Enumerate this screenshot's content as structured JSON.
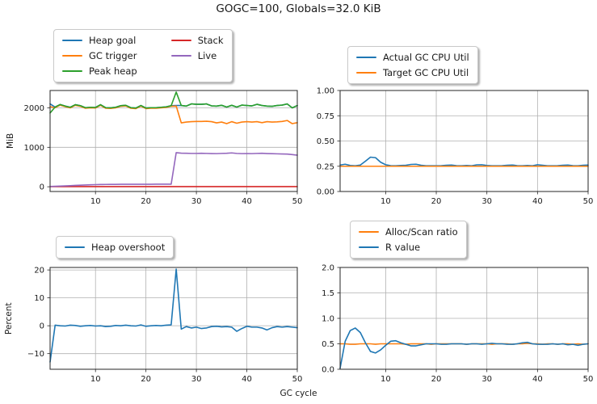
{
  "title": "GOGC=100, Globals=32.0 KiB",
  "xlabel": "GC cycle",
  "style": {
    "background": "#ffffff",
    "grid_color": "#b0b0b0",
    "spine_color": "#262626",
    "text_color": "#1a1a1a",
    "blue": "#1f77b4",
    "orange": "#ff7f0e",
    "green": "#2ca02c",
    "red": "#d62728",
    "purple": "#9467bd"
  },
  "chart_data": [
    {
      "id": "heap-sizes",
      "type": "line",
      "ylabel": "MiB",
      "x_start": 1,
      "xlim": [
        1,
        50
      ],
      "ylim": [
        -120,
        2440
      ],
      "xticks": [
        10,
        20,
        30,
        40,
        50
      ],
      "xticklabels": [
        "10",
        "20",
        "30",
        "40",
        "50"
      ],
      "yticks": [
        0,
        1000,
        2000
      ],
      "yticklabels": [
        "0",
        "1000",
        "2000"
      ],
      "grid": true,
      "legend_position": "above-left",
      "legend_columns": 2,
      "series": [
        {
          "name": "Heap goal",
          "color": "#1f77b4",
          "values": [
            2100,
            2020,
            2085,
            2045,
            2015,
            2080,
            2055,
            2005,
            2015,
            2010,
            2080,
            2005,
            2000,
            2015,
            2055,
            2065,
            2005,
            1995,
            2060,
            1995,
            2005,
            2005,
            2015,
            2025,
            2055,
            2060,
            2060,
            2045,
            2100,
            2090,
            2090,
            2100,
            2050,
            2045,
            2065,
            2020,
            2065,
            2020,
            2070,
            2060,
            2050,
            2090,
            2060,
            2045,
            2040,
            2060,
            2070,
            2100,
            2000,
            2060
          ]
        },
        {
          "name": "GC trigger",
          "color": "#ff7f0e",
          "values": [
            2030,
            2005,
            2070,
            2030,
            2000,
            2065,
            2040,
            1990,
            2000,
            1995,
            2065,
            1990,
            1985,
            2000,
            2040,
            2050,
            1990,
            1980,
            2045,
            1980,
            1990,
            1990,
            2000,
            2010,
            2040,
            2045,
            1620,
            1640,
            1650,
            1655,
            1655,
            1660,
            1650,
            1620,
            1640,
            1600,
            1650,
            1610,
            1640,
            1650,
            1640,
            1650,
            1625,
            1650,
            1640,
            1645,
            1655,
            1680,
            1600,
            1625
          ]
        },
        {
          "name": "Peak heap",
          "color": "#2ca02c",
          "values": [
            1870,
            2020,
            2085,
            2045,
            2015,
            2080,
            2055,
            2005,
            2015,
            2010,
            2080,
            2005,
            2000,
            2015,
            2055,
            2065,
            2005,
            1995,
            2060,
            1995,
            2005,
            2005,
            2015,
            2025,
            2055,
            2400,
            2060,
            2045,
            2100,
            2090,
            2090,
            2100,
            2050,
            2045,
            2065,
            2020,
            2065,
            2020,
            2070,
            2060,
            2050,
            2090,
            2060,
            2045,
            2040,
            2060,
            2070,
            2100,
            2000,
            2060
          ]
        },
        {
          "name": "Stack",
          "color": "#d62728",
          "values": [
            4,
            4,
            4,
            4,
            4,
            4,
            4,
            4,
            4,
            4,
            4,
            4,
            4,
            4,
            4,
            4,
            4,
            4,
            4,
            4,
            4,
            4,
            4,
            4,
            4,
            4,
            4,
            4,
            4,
            4,
            4,
            4,
            4,
            4,
            4,
            4,
            4,
            4,
            4,
            4,
            4,
            4,
            4,
            4,
            4,
            4,
            4,
            4,
            4,
            4
          ]
        },
        {
          "name": "Live",
          "color": "#9467bd",
          "values": [
            8,
            12,
            16,
            22,
            28,
            34,
            40,
            45,
            50,
            54,
            57,
            59,
            60,
            61,
            62,
            62,
            63,
            63,
            64,
            64,
            64,
            65,
            65,
            65,
            65,
            865,
            852,
            848,
            845,
            845,
            848,
            845,
            842,
            840,
            845,
            848,
            858,
            845,
            840,
            842,
            840,
            845,
            848,
            842,
            838,
            835,
            832,
            828,
            815,
            800
          ]
        }
      ]
    },
    {
      "id": "gc-cpu-util",
      "type": "line",
      "ylabel": "",
      "x_start": 1,
      "xlim": [
        1,
        50
      ],
      "ylim": [
        0,
        1
      ],
      "xticks": [
        10,
        20,
        30,
        40,
        50
      ],
      "xticklabels": [
        "10",
        "20",
        "30",
        "40",
        "50"
      ],
      "yticks": [
        0,
        0.25,
        0.5,
        0.75,
        1.0
      ],
      "yticklabels": [
        "0.00",
        "0.25",
        "0.50",
        "0.75",
        "1.00"
      ],
      "grid": true,
      "legend_position": "above-left",
      "legend_columns": 1,
      "series": [
        {
          "name": "Actual GC CPU Util",
          "color": "#1f77b4",
          "values": [
            0.262,
            0.27,
            0.258,
            0.255,
            0.262,
            0.3,
            0.34,
            0.335,
            0.29,
            0.265,
            0.256,
            0.255,
            0.258,
            0.26,
            0.268,
            0.27,
            0.26,
            0.255,
            0.255,
            0.255,
            0.256,
            0.26,
            0.262,
            0.256,
            0.255,
            0.258,
            0.255,
            0.264,
            0.265,
            0.258,
            0.255,
            0.255,
            0.256,
            0.26,
            0.262,
            0.256,
            0.255,
            0.258,
            0.255,
            0.265,
            0.26,
            0.255,
            0.255,
            0.256,
            0.26,
            0.262,
            0.256,
            0.255,
            0.26,
            0.262
          ]
        },
        {
          "name": "Target GC CPU Util",
          "color": "#ff7f0e",
          "values": [
            0.25,
            0.25,
            0.25,
            0.25,
            0.25,
            0.25,
            0.25,
            0.25,
            0.25,
            0.25,
            0.25,
            0.25,
            0.25,
            0.25,
            0.25,
            0.25,
            0.25,
            0.25,
            0.25,
            0.25,
            0.25,
            0.25,
            0.25,
            0.25,
            0.25,
            0.25,
            0.25,
            0.25,
            0.25,
            0.25,
            0.25,
            0.25,
            0.25,
            0.25,
            0.25,
            0.25,
            0.25,
            0.25,
            0.25,
            0.25,
            0.25,
            0.25,
            0.25,
            0.25,
            0.25,
            0.25,
            0.25,
            0.25,
            0.25,
            0.25
          ]
        }
      ]
    },
    {
      "id": "heap-overshoot",
      "type": "line",
      "ylabel": "Percent",
      "x_start": 1,
      "xlim": [
        1,
        50
      ],
      "ylim": [
        -15.6,
        20.9
      ],
      "xticks": [
        10,
        20,
        30,
        40,
        50
      ],
      "xticklabels": [
        "10",
        "20",
        "30",
        "40",
        "50"
      ],
      "yticks": [
        -10,
        0,
        10,
        20
      ],
      "yticklabels": [
        "−10",
        "0",
        "10",
        "20"
      ],
      "grid": true,
      "legend_position": "above-left",
      "legend_columns": 1,
      "series": [
        {
          "name": "Heap overshoot",
          "color": "#1f77b4",
          "values": [
            -13.0,
            0.2,
            0.0,
            -0.1,
            0.2,
            0.1,
            -0.2,
            0.0,
            0.1,
            -0.1,
            0.0,
            -0.3,
            -0.2,
            0.1,
            0.0,
            0.2,
            0.0,
            -0.1,
            0.3,
            -0.2,
            0.0,
            0.1,
            0.0,
            0.2,
            0.3,
            20.3,
            -1.2,
            -0.3,
            -0.8,
            -0.5,
            -1.0,
            -0.8,
            -0.3,
            -0.2,
            -0.4,
            -0.3,
            -0.5,
            -2.0,
            -1.0,
            -0.2,
            -0.5,
            -0.5,
            -0.8,
            -1.5,
            -0.7,
            -0.3,
            -0.5,
            -0.3,
            -0.5,
            -0.7
          ]
        }
      ]
    },
    {
      "id": "r-value",
      "type": "line",
      "ylabel": "",
      "x_start": 1,
      "xlim": [
        1,
        50
      ],
      "ylim": [
        0,
        2.0
      ],
      "xticks": [
        10,
        20,
        30,
        40,
        50
      ],
      "xticklabels": [
        "10",
        "20",
        "30",
        "40",
        "50"
      ],
      "yticks": [
        0,
        0.5,
        1.0,
        1.5,
        2.0
      ],
      "yticklabels": [
        "0.0",
        "0.5",
        "1.0",
        "1.5",
        "2.0"
      ],
      "grid": true,
      "legend_position": "above-left",
      "legend_columns": 1,
      "series": [
        {
          "name": "Alloc/Scan ratio",
          "color": "#ff7f0e",
          "values": [
            0.5,
            0.5,
            0.49,
            0.49,
            0.5,
            0.5,
            0.5,
            0.49,
            0.5,
            0.5,
            0.5,
            0.5,
            0.5,
            0.49,
            0.5,
            0.5,
            0.5,
            0.5,
            0.49,
            0.5,
            0.5,
            0.5,
            0.5,
            0.5,
            0.5,
            0.49,
            0.5,
            0.5,
            0.5,
            0.5,
            0.49,
            0.5,
            0.5,
            0.5,
            0.49,
            0.5,
            0.5,
            0.51,
            0.5,
            0.5,
            0.49,
            0.5,
            0.5,
            0.49,
            0.5,
            0.5,
            0.49,
            0.5,
            0.49,
            0.5
          ]
        },
        {
          "name": "R value",
          "color": "#1f77b4",
          "values": [
            0.02,
            0.55,
            0.76,
            0.81,
            0.72,
            0.52,
            0.35,
            0.32,
            0.38,
            0.47,
            0.55,
            0.56,
            0.52,
            0.49,
            0.46,
            0.46,
            0.48,
            0.5,
            0.5,
            0.5,
            0.49,
            0.49,
            0.5,
            0.5,
            0.5,
            0.49,
            0.5,
            0.5,
            0.49,
            0.5,
            0.51,
            0.5,
            0.5,
            0.49,
            0.49,
            0.5,
            0.52,
            0.53,
            0.5,
            0.49,
            0.49,
            0.49,
            0.5,
            0.49,
            0.5,
            0.48,
            0.49,
            0.47,
            0.49,
            0.5
          ]
        }
      ]
    }
  ]
}
